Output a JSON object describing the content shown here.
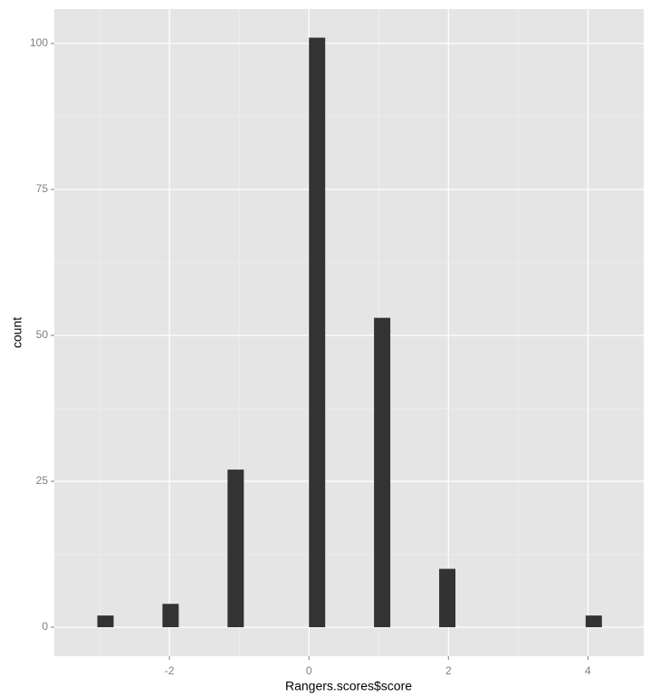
{
  "chart_data": {
    "type": "histogram",
    "x_label": "Rangers.scores$score",
    "y_label": "count",
    "bins": [
      -3.0333,
      -2.8,
      -2.5667,
      -2.3333,
      -2.1,
      -1.8667,
      -1.6333,
      -1.4,
      -1.1667,
      -0.9333,
      -0.7,
      -0.4667,
      -0.2333,
      0,
      0.2333,
      0.4667,
      0.7,
      0.9333,
      1.1667,
      1.4,
      1.6333,
      1.8667,
      2.1,
      2.3333,
      2.5667,
      2.8,
      3.0333,
      3.2667,
      3.5,
      3.7333,
      3.9667,
      4.2
    ],
    "values": [
      2,
      0,
      0,
      0,
      4,
      0,
      0,
      0,
      27,
      0,
      0,
      0,
      0,
      101,
      0,
      0,
      0,
      53,
      0,
      0,
      0,
      10,
      0,
      0,
      0,
      0,
      0,
      0,
      0,
      0,
      2
    ],
    "color": "#333333",
    "xlim": [
      -3.65,
      4.8
    ],
    "ylim": [
      -4.97,
      105.9
    ],
    "xticks": [
      -2,
      0,
      2,
      4
    ],
    "yticks": [
      0,
      25,
      50,
      75,
      100
    ],
    "x_minor_ticks": [
      -3,
      -1,
      1,
      3
    ],
    "y_minor_ticks": [
      12.5,
      37.5,
      62.5,
      87.5
    ],
    "grid": true
  }
}
